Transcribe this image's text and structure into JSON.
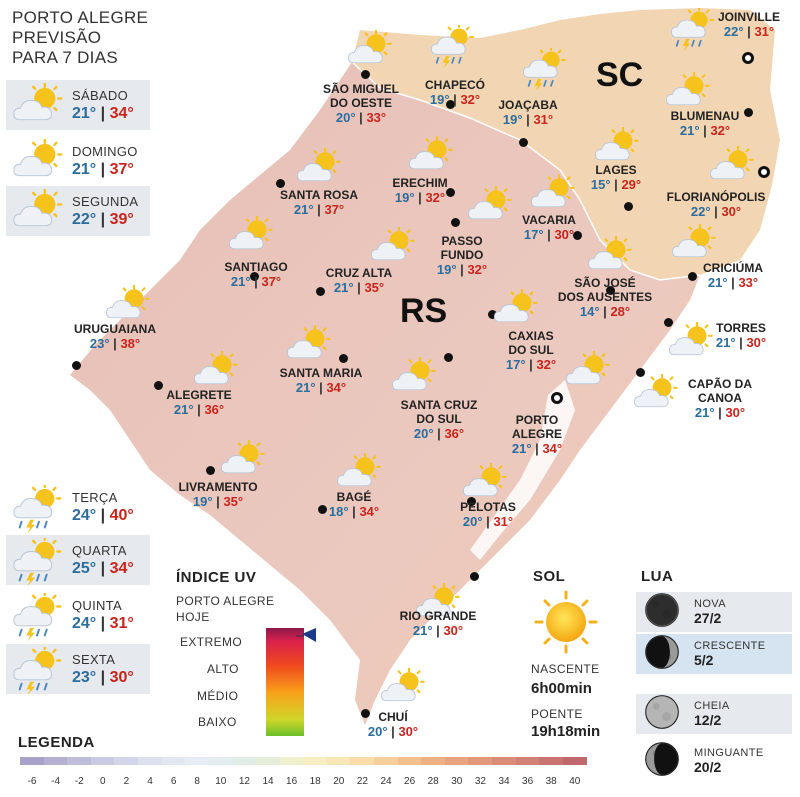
{
  "header": {
    "line1": "PORTO ALEGRE",
    "line2": "PREVISÃO",
    "line3": "PARA 7 DIAS"
  },
  "days": [
    {
      "name": "SÁBADO",
      "min": "21°",
      "max": "34°",
      "icon": "sun-cloud-icon"
    },
    {
      "name": "DOMINGO",
      "min": "21°",
      "max": "37°",
      "icon": "sun-cloud-icon"
    },
    {
      "name": "SEGUNDA",
      "min": "22°",
      "max": "39°",
      "icon": "sun-cloud-icon"
    },
    {
      "name": "TERÇA",
      "min": "24°",
      "max": "40°",
      "icon": "storm-icon"
    },
    {
      "name": "QUARTA",
      "min": "25°",
      "max": "34°",
      "icon": "storm-icon"
    },
    {
      "name": "QUINTA",
      "min": "24°",
      "max": "31°",
      "icon": "storm-icon"
    },
    {
      "name": "SEXTA",
      "min": "23°",
      "max": "30°",
      "icon": "storm-icon"
    }
  ],
  "separator": "|",
  "states": {
    "rs": "RS",
    "sc": "SC"
  },
  "cities": [
    {
      "name1": "SÃO MIGUEL",
      "name2": "DO OESTE",
      "min": "20°",
      "max": "33°"
    },
    {
      "name1": "CHAPECÓ",
      "name2": "",
      "min": "19°",
      "max": "32°"
    },
    {
      "name1": "JOAÇABA",
      "name2": "",
      "min": "19°",
      "max": "31°"
    },
    {
      "name1": "JOINVILLE",
      "name2": "",
      "min": "22°",
      "max": "31°"
    },
    {
      "name1": "BLUMENAU",
      "name2": "",
      "min": "21°",
      "max": "32°"
    },
    {
      "name1": "LAGES",
      "name2": "",
      "min": "15°",
      "max": "29°"
    },
    {
      "name1": "FLORIANÓPOLIS",
      "name2": "",
      "min": "22°",
      "max": "30°"
    },
    {
      "name1": "SANTA ROSA",
      "name2": "",
      "min": "21°",
      "max": "37°"
    },
    {
      "name1": "ERECHIM",
      "name2": "",
      "min": "19°",
      "max": "32°"
    },
    {
      "name1": "VACARIA",
      "name2": "",
      "min": "17°",
      "max": "30°"
    },
    {
      "name1": "PASSO",
      "name2": "FUNDO",
      "min": "19°",
      "max": "32°"
    },
    {
      "name1": "SANTIAGO",
      "name2": "",
      "min": "21°",
      "max": "37°"
    },
    {
      "name1": "CRUZ ALTA",
      "name2": "",
      "min": "21°",
      "max": "35°"
    },
    {
      "name1": "SÃO JOSÉ",
      "name2": "DOS AUSENTES",
      "min": "14°",
      "max": "28°"
    },
    {
      "name1": "CRICIÚMA",
      "name2": "",
      "min": "21°",
      "max": "33°"
    },
    {
      "name1": "URUGUAIANA",
      "name2": "",
      "min": "23°",
      "max": "38°"
    },
    {
      "name1": "CAXIAS",
      "name2": "DO SUL",
      "min": "17°",
      "max": "32°"
    },
    {
      "name1": "TORRES",
      "name2": "",
      "min": "21°",
      "max": "30°"
    },
    {
      "name1": "SANTA MARIA",
      "name2": "",
      "min": "21°",
      "max": "34°"
    },
    {
      "name1": "ALEGRETE",
      "name2": "",
      "min": "21°",
      "max": "36°"
    },
    {
      "name1": "CAPÃO DA",
      "name2": "CANOA",
      "min": "21°",
      "max": "30°"
    },
    {
      "name1": "SANTA CRUZ",
      "name2": "DO SUL",
      "min": "20°",
      "max": "36°"
    },
    {
      "name1": "PORTO",
      "name2": "ALEGRE",
      "min": "21°",
      "max": "34°"
    },
    {
      "name1": "LIVRAMENTO",
      "name2": "",
      "min": "19°",
      "max": "35°"
    },
    {
      "name1": "BAGÉ",
      "name2": "",
      "min": "18°",
      "max": "34°"
    },
    {
      "name1": "PELOTAS",
      "name2": "",
      "min": "20°",
      "max": "31°"
    },
    {
      "name1": "RIO GRANDE",
      "name2": "",
      "min": "21°",
      "max": "30°"
    },
    {
      "name1": "CHUÍ",
      "name2": "",
      "min": "20°",
      "max": "30°"
    }
  ],
  "uv": {
    "title": "ÍNDICE UV",
    "sub1": "PORTO ALEGRE",
    "sub2": "HOJE",
    "levels": [
      "EXTREMO",
      "ALTO",
      "MÉDIO",
      "BAIXO"
    ],
    "current_level": "EXTREMO"
  },
  "sol": {
    "title": "SOL",
    "rise_label": "NASCENTE",
    "rise": "6h00min",
    "set_label": "POENTE",
    "set": "19h18min"
  },
  "lua": {
    "title": "LUA",
    "phases": [
      {
        "name": "NOVA",
        "date": "27/2",
        "icon": "new-moon-icon"
      },
      {
        "name": "CRESCENTE",
        "date": "5/2",
        "icon": "waxing-moon-icon"
      },
      {
        "name": "CHEIA",
        "date": "12/2",
        "icon": "full-moon-icon"
      },
      {
        "name": "MINGUANTE",
        "date": "20/2",
        "icon": "waning-moon-icon"
      }
    ]
  },
  "legend": {
    "title": "LEGENDA",
    "values": [
      "-6",
      "-4",
      "-2",
      "0",
      "2",
      "4",
      "6",
      "8",
      "10",
      "12",
      "14",
      "16",
      "18",
      "20",
      "22",
      "24",
      "26",
      "28",
      "30",
      "32",
      "34",
      "36",
      "38",
      "40"
    ],
    "colors": [
      "#a9a2c8",
      "#b5b0d2",
      "#c0bddb",
      "#cbcae3",
      "#d3d5ea",
      "#dde0ef",
      "#e3e7f2",
      "#e6ecf3",
      "#e3ecef",
      "#e0ece6",
      "#e6eed9",
      "#eff0cd",
      "#f6eec2",
      "#f8e6b6",
      "#f8dcaa",
      "#f6cf9c",
      "#f2c08e",
      "#edb184",
      "#e8a47e",
      "#e2987a",
      "#db8c78",
      "#d38075",
      "#ca7471",
      "#c0686c"
    ]
  },
  "colors": {
    "rs_fill": "#ecc5b8",
    "sc_fill": "#f2d6b3",
    "ocean": "#ffffff",
    "min_temp": "#2a6d9e",
    "max_temp": "#c8241c"
  }
}
